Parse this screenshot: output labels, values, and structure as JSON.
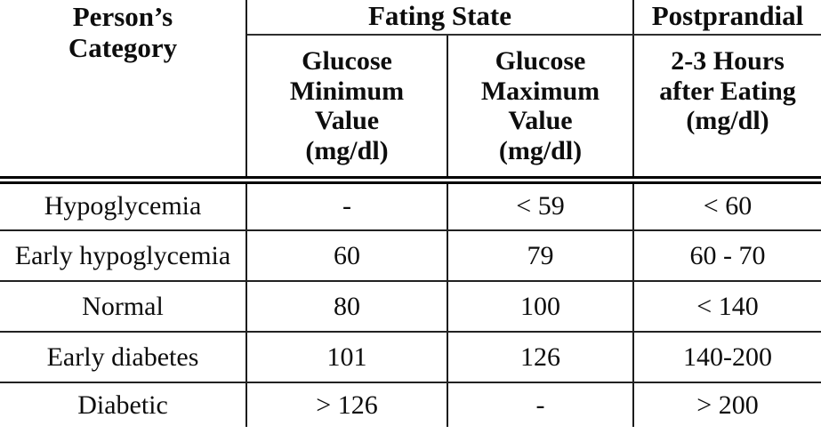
{
  "table": {
    "headers": {
      "person_category": "Person’s\nCategory",
      "fasting_state": "Fating State",
      "postprandial": "Postprandial",
      "glucose_min": "Glucose\nMinimum\nValue\n(mg/dl)",
      "glucose_max": "Glucose\nMaximum\nValue\n(mg/dl)",
      "postprandial_sub": "2-3 Hours\nafter Eating\n(mg/dl)"
    },
    "rows": [
      {
        "category": "Hypoglycemia",
        "min": "-",
        "max": "< 59",
        "postprandial": "< 60"
      },
      {
        "category": "Early hypoglycemia",
        "min": "60",
        "max": "79",
        "postprandial": "60 - 70"
      },
      {
        "category": "Normal",
        "min": "80",
        "max": "100",
        "postprandial": "< 140"
      },
      {
        "category": "Early diabetes",
        "min": "101",
        "max": "126",
        "postprandial": "140-200"
      },
      {
        "category": "Diabetic",
        "min": "> 126",
        "max": "-",
        "postprandial": "> 200"
      }
    ]
  },
  "colors": {
    "text": "#0d0d0d",
    "grid_line": "#1c1c1c",
    "background": "#ffffff"
  }
}
